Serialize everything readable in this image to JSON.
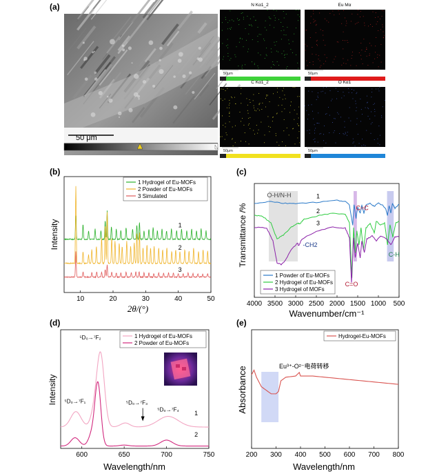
{
  "panel_a": {
    "label": "(a)",
    "sem_scale_bar": "50 μm",
    "eds_maps": [
      {
        "title": "N Kα1_2",
        "scale": "50μm",
        "color": "#3fd23a",
        "dot": "#2fa82f"
      },
      {
        "title": "Eu Mα",
        "scale": "50μm",
        "color": "#e01b1b",
        "dot": "#a22020"
      },
      {
        "title": "C Kα1_2",
        "scale": "50μm",
        "color": "#f1e11f",
        "dot": "#c6c230"
      },
      {
        "title": "O Kα1",
        "scale": "50μm",
        "color": "#1f86d8",
        "dot": "#3a52a8"
      }
    ]
  },
  "chart_data": [
    {
      "panel": "(b)",
      "type": "line",
      "xlabel": "2θ/(°)",
      "ylabel": "Intensity",
      "xlim": [
        5,
        50
      ],
      "xticks": [
        10,
        20,
        30,
        40,
        50
      ],
      "legend": [
        "1 Hydrogel of Eu-MOFs",
        "2 Powder of Eu-MOFs",
        "3 Simulated"
      ],
      "legend_position": "top-center",
      "curve_labels": [
        "1",
        "2",
        "3"
      ],
      "series": [
        {
          "name": "1 Hydrogel of Eu-MOFs",
          "color": "#2ab02a",
          "baseline": 0.62,
          "peaks": [
            [
              8.6,
              0.28
            ],
            [
              10.8,
              0.18
            ],
            [
              12.5,
              0.1
            ],
            [
              14.5,
              0.12
            ],
            [
              16.3,
              0.1
            ],
            [
              17.6,
              0.22
            ],
            [
              18.2,
              0.33
            ],
            [
              19.5,
              0.15
            ],
            [
              21.0,
              0.12
            ],
            [
              22.4,
              0.1
            ],
            [
              24.0,
              0.14
            ],
            [
              26.0,
              0.12
            ],
            [
              27.3,
              0.16
            ],
            [
              28.1,
              0.2
            ],
            [
              29.5,
              0.1
            ],
            [
              31.0,
              0.12
            ],
            [
              32.3,
              0.14
            ],
            [
              33.6,
              0.1
            ],
            [
              35.0,
              0.12
            ],
            [
              36.4,
              0.1
            ],
            [
              37.9,
              0.12
            ],
            [
              39.5,
              0.1
            ],
            [
              41.0,
              0.12
            ],
            [
              42.6,
              0.1
            ],
            [
              44.1,
              0.12
            ],
            [
              45.6,
              0.1
            ],
            [
              47.0,
              0.12
            ],
            [
              48.5,
              0.1
            ]
          ]
        },
        {
          "name": "2 Powder of Eu-MOFs",
          "color": "#f0b429",
          "baseline": 0.34,
          "peaks": [
            [
              8.6,
              0.9
            ],
            [
              10.8,
              0.14
            ],
            [
              12.5,
              0.1
            ],
            [
              13.5,
              0.16
            ],
            [
              14.9,
              0.2
            ],
            [
              16.5,
              0.3
            ],
            [
              17.6,
              0.45
            ],
            [
              18.2,
              0.6
            ],
            [
              19.6,
              0.3
            ],
            [
              20.6,
              0.26
            ],
            [
              21.9,
              0.24
            ],
            [
              22.8,
              0.2
            ],
            [
              24.2,
              0.26
            ],
            [
              25.4,
              0.2
            ],
            [
              26.5,
              0.24
            ],
            [
              27.3,
              0.35
            ],
            [
              28.1,
              0.36
            ],
            [
              29.2,
              0.18
            ],
            [
              30.4,
              0.22
            ],
            [
              31.5,
              0.18
            ],
            [
              32.6,
              0.2
            ],
            [
              34.0,
              0.18
            ],
            [
              35.2,
              0.16
            ],
            [
              36.5,
              0.18
            ],
            [
              38.0,
              0.14
            ],
            [
              39.2,
              0.16
            ],
            [
              40.5,
              0.14
            ],
            [
              42.0,
              0.16
            ],
            [
              43.3,
              0.14
            ],
            [
              44.7,
              0.18
            ],
            [
              46.2,
              0.14
            ],
            [
              47.6,
              0.16
            ],
            [
              49.0,
              0.14
            ]
          ]
        },
        {
          "name": "3 Simulated",
          "color": "#e05a5a",
          "baseline": 0.18,
          "peaks": [
            [
              8.6,
              0.3
            ],
            [
              10.8,
              0.06
            ],
            [
              13.5,
              0.05
            ],
            [
              15.0,
              0.06
            ],
            [
              16.5,
              0.06
            ],
            [
              17.6,
              0.09
            ],
            [
              18.2,
              0.14
            ],
            [
              19.6,
              0.06
            ],
            [
              21.0,
              0.05
            ],
            [
              22.4,
              0.05
            ],
            [
              24.0,
              0.06
            ],
            [
              25.6,
              0.05
            ],
            [
              27.0,
              0.06
            ],
            [
              28.0,
              0.06
            ],
            [
              29.5,
              0.05
            ],
            [
              31.0,
              0.05
            ],
            [
              32.5,
              0.04
            ],
            [
              34.0,
              0.05
            ],
            [
              35.5,
              0.05
            ],
            [
              37.0,
              0.05
            ],
            [
              38.5,
              0.05
            ],
            [
              40.0,
              0.04
            ],
            [
              41.5,
              0.04
            ],
            [
              43.0,
              0.05
            ],
            [
              44.5,
              0.04
            ],
            [
              46.0,
              0.04
            ],
            [
              47.5,
              0.04
            ],
            [
              49.0,
              0.04
            ]
          ]
        }
      ]
    },
    {
      "panel": "(c)",
      "type": "line",
      "xlabel": "Wavenumber/cm⁻¹",
      "ylabel": "Transmittance /%",
      "xlim": [
        4000,
        500
      ],
      "xticks": [
        4000,
        3500,
        3000,
        2500,
        2000,
        1500,
        1000,
        500
      ],
      "legend": [
        "1 Powder of Eu-MOFs",
        "2 Hydrogel of Eu-MOFs",
        "3 Hydrogel of MOFs"
      ],
      "legend_position": "bottom-center",
      "curve_labels": [
        "1",
        "2",
        "3"
      ],
      "annotations": [
        {
          "text": "O-H/N-H",
          "x": 3400,
          "y": 0.86
        },
        {
          "text": "C=C",
          "x": 1390,
          "y": 0.73
        },
        {
          "text": "C-H",
          "x": 620,
          "y": 0.26
        },
        {
          "text": "C=O",
          "x": 1650,
          "y": -0.04
        },
        {
          "text": "-CH2",
          "x": 2650,
          "y": 0.36
        }
      ],
      "highlight_bands": [
        [
          3650,
          2950
        ],
        [
          1600,
          1520
        ],
        [
          790,
          630
        ]
      ],
      "series": [
        {
          "name": "1 Powder of Eu-MOFs",
          "color": "#2878c8",
          "points": [
            [
              4000,
              0.8
            ],
            [
              3600,
              0.82
            ],
            [
              3300,
              0.8
            ],
            [
              3000,
              0.8
            ],
            [
              2500,
              0.81
            ],
            [
              2000,
              0.83
            ],
            [
              1800,
              0.82
            ],
            [
              1700,
              0.78
            ],
            [
              1620,
              0.58
            ],
            [
              1590,
              0.79
            ],
            [
              1540,
              0.65
            ],
            [
              1500,
              0.76
            ],
            [
              1440,
              0.7
            ],
            [
              1400,
              0.78
            ],
            [
              1350,
              0.7
            ],
            [
              1300,
              0.78
            ],
            [
              1200,
              0.8
            ],
            [
              1100,
              0.77
            ],
            [
              1000,
              0.8
            ],
            [
              900,
              0.78
            ],
            [
              820,
              0.74
            ],
            [
              780,
              0.68
            ],
            [
              740,
              0.78
            ],
            [
              700,
              0.7
            ],
            [
              660,
              0.8
            ],
            [
              600,
              0.75
            ],
            [
              500,
              0.79
            ]
          ]
        },
        {
          "name": "2 Hydrogel of Eu-MOFs",
          "color": "#2ecc40",
          "points": [
            [
              4000,
              0.68
            ],
            [
              3800,
              0.67
            ],
            [
              3600,
              0.6
            ],
            [
              3450,
              0.44
            ],
            [
              3300,
              0.48
            ],
            [
              3100,
              0.56
            ],
            [
              2950,
              0.6
            ],
            [
              2900,
              0.59
            ],
            [
              2800,
              0.64
            ],
            [
              2500,
              0.67
            ],
            [
              2100,
              0.7
            ],
            [
              1800,
              0.69
            ],
            [
              1700,
              0.6
            ],
            [
              1640,
              0.05
            ],
            [
              1600,
              0.55
            ],
            [
              1560,
              0.3
            ],
            [
              1520,
              0.52
            ],
            [
              1470,
              0.38
            ],
            [
              1420,
              0.55
            ],
            [
              1360,
              0.33
            ],
            [
              1300,
              0.55
            ],
            [
              1200,
              0.6
            ],
            [
              1100,
              0.5
            ],
            [
              1050,
              0.62
            ],
            [
              950,
              0.58
            ],
            [
              850,
              0.6
            ],
            [
              780,
              0.38
            ],
            [
              720,
              0.58
            ],
            [
              650,
              0.46
            ],
            [
              580,
              0.6
            ],
            [
              500,
              0.62
            ]
          ]
        },
        {
          "name": "3 Hydrogel of MOFs",
          "color": "#8a1fa8",
          "points": [
            [
              4000,
              0.56
            ],
            [
              3700,
              0.55
            ],
            [
              3550,
              0.42
            ],
            [
              3450,
              0.2
            ],
            [
              3350,
              0.18
            ],
            [
              3250,
              0.22
            ],
            [
              3100,
              0.34
            ],
            [
              2950,
              0.4
            ],
            [
              2930,
              0.37
            ],
            [
              2850,
              0.44
            ],
            [
              2500,
              0.52
            ],
            [
              2100,
              0.56
            ],
            [
              1800,
              0.55
            ],
            [
              1700,
              0.45
            ],
            [
              1650,
              0.0
            ],
            [
              1600,
              0.45
            ],
            [
              1560,
              0.25
            ],
            [
              1500,
              0.4
            ],
            [
              1440,
              0.25
            ],
            [
              1400,
              0.42
            ],
            [
              1340,
              0.3
            ],
            [
              1280,
              0.44
            ],
            [
              1150,
              0.47
            ],
            [
              1050,
              0.42
            ],
            [
              950,
              0.47
            ],
            [
              800,
              0.44
            ],
            [
              700,
              0.38
            ],
            [
              600,
              0.46
            ],
            [
              500,
              0.47
            ]
          ]
        }
      ]
    },
    {
      "panel": "(d)",
      "type": "line",
      "xlabel": "Wavelength/nm",
      "ylabel": "Intensity",
      "xlim": [
        575,
        750
      ],
      "xticks": [
        600,
        650,
        700,
        750
      ],
      "legend": [
        "1 Hydrogel of Eu-MOFs",
        "2 Powder of Eu-MOFs"
      ],
      "legend_position": "top-right",
      "curve_labels": [
        "1",
        "2"
      ],
      "annotations": [
        {
          "text": "⁵D₀→⁷F₁",
          "x": 592,
          "y": 0.38
        },
        {
          "text": "⁵D₀→⁷F₂",
          "x": 610,
          "y": 0.92
        },
        {
          "text": "⁵D₀→⁷F₃",
          "x": 665,
          "y": 0.37
        },
        {
          "text": "⁵D₀→⁷F₄",
          "x": 702,
          "y": 0.31
        }
      ],
      "series": [
        {
          "name": "1 Hydrogel of Eu-MOFs",
          "color": "#f2a5c2",
          "baseline": 0.18,
          "peaks": [
            [
              593,
              0.13,
              6
            ],
            [
              614,
              0.1,
              4
            ],
            [
              622,
              0.62,
              4.5
            ],
            [
              650,
              0.015,
              6
            ],
            [
              652,
              0.02,
              5
            ],
            [
              702,
              0.09,
              12
            ]
          ]
        },
        {
          "name": "2 Powder of Eu-MOFs",
          "color": "#d1277d",
          "baseline": 0.02,
          "peaks": [
            [
              592,
              0.07,
              5
            ],
            [
              612,
              0.1,
              4
            ],
            [
              619,
              0.52,
              3.5
            ],
            [
              650,
              0.008,
              5
            ],
            [
              700,
              0.05,
              7
            ]
          ]
        }
      ]
    },
    {
      "panel": "(e)",
      "type": "line",
      "xlabel": "Wavelength/nm",
      "ylabel": "Absorbance",
      "xlim": [
        200,
        800
      ],
      "xticks": [
        200,
        300,
        400,
        500,
        600,
        700,
        800
      ],
      "legend": [
        "Hydrogel-Eu-MOFs"
      ],
      "legend_position": "top-right",
      "annotation": "Eu³⁺-O²⁻电荷转移",
      "highlight_band": [
        240,
        310
      ],
      "series": [
        {
          "name": "Hydrogel-Eu-MOFs",
          "color": "#d9534f",
          "points": [
            [
              200,
              0.62
            ],
            [
              210,
              0.66
            ],
            [
              220,
              0.6
            ],
            [
              240,
              0.52
            ],
            [
              260,
              0.49
            ],
            [
              280,
              0.46
            ],
            [
              300,
              0.46
            ],
            [
              310,
              0.48
            ],
            [
              320,
              0.57
            ],
            [
              340,
              0.6
            ],
            [
              380,
              0.61
            ],
            [
              395,
              0.64
            ],
            [
              400,
              0.61
            ],
            [
              450,
              0.61
            ],
            [
              500,
              0.6
            ],
            [
              550,
              0.59
            ],
            [
              600,
              0.58
            ],
            [
              650,
              0.57
            ],
            [
              700,
              0.56
            ],
            [
              750,
              0.55
            ],
            [
              800,
              0.54
            ]
          ]
        }
      ]
    }
  ]
}
